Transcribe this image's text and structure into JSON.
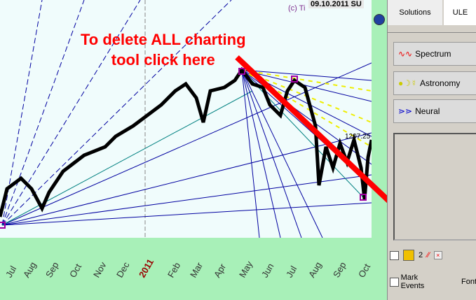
{
  "chart": {
    "date_label": "09.10.2011 SU",
    "copyright": "(c) Ti",
    "price_label": "1207.25",
    "months": [
      "Jul",
      "Aug",
      "Sep",
      "Oct",
      "Nov",
      "Dec",
      "2011",
      "Feb",
      "Mar",
      "Apr",
      "May",
      "Jun",
      "Jul",
      "Aug",
      "Sep",
      "Oct"
    ]
  },
  "annotation": {
    "line1": "To delete ALL charting",
    "line2": "tool click here",
    "color": "#ff0000"
  },
  "panel": {
    "tabs": [
      "Solutions",
      "ULE"
    ],
    "buttons": [
      {
        "label": "Spectrum",
        "icon": "waveform-icon"
      },
      {
        "label": "Astronomy",
        "icon": "planets-icon"
      },
      {
        "label": "Neural",
        "icon": "neural-net-icon"
      }
    ],
    "tool_count": "2",
    "mark_events": "Mark Events",
    "font": "Font"
  }
}
